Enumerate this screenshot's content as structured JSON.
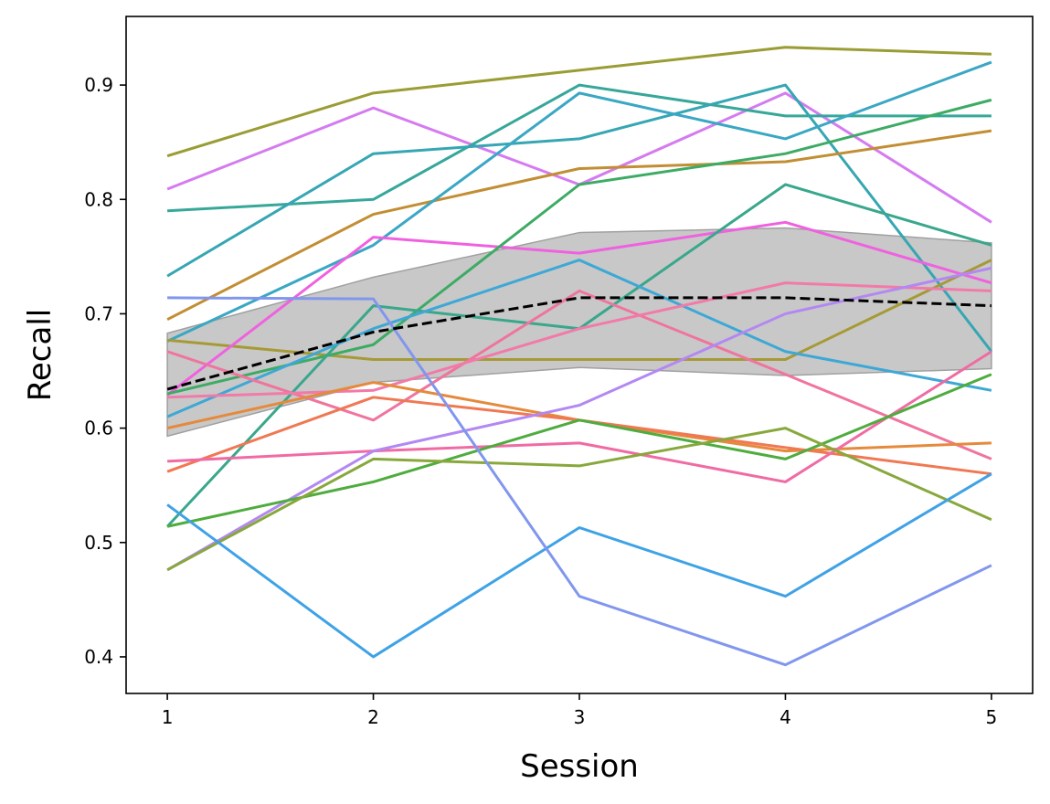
{
  "chart_data": {
    "type": "line",
    "title": "",
    "xlabel": "Session",
    "ylabel": "Recall",
    "x": [
      1,
      2,
      3,
      4,
      5
    ],
    "xlim": [
      0.8,
      5.2
    ],
    "ylim": [
      0.368,
      0.96
    ],
    "xticks": [
      "1",
      "2",
      "3",
      "4",
      "5"
    ],
    "yticks": [
      {
        "value": 0.4,
        "label": "0.4"
      },
      {
        "value": 0.5,
        "label": "0.5"
      },
      {
        "value": 0.6,
        "label": "0.6"
      },
      {
        "value": 0.7,
        "label": "0.7"
      },
      {
        "value": 0.8,
        "label": "0.8"
      },
      {
        "value": 0.9,
        "label": "0.9"
      }
    ],
    "grid": false,
    "series": [
      {
        "color": "#9a9c34",
        "values": [
          0.838,
          0.893,
          0.913,
          0.933,
          0.927
        ]
      },
      {
        "color": "#d57bf0",
        "values": [
          0.809,
          0.88,
          0.813,
          0.893,
          0.78
        ]
      },
      {
        "color": "#36a79a",
        "values": [
          0.79,
          0.8,
          0.9,
          0.873,
          0.873
        ]
      },
      {
        "color": "#36a6b3",
        "values": [
          0.733,
          0.84,
          0.853,
          0.9,
          0.667
        ]
      },
      {
        "color": "#c28e33",
        "values": [
          0.695,
          0.787,
          0.827,
          0.833,
          0.86
        ]
      },
      {
        "color": "#3aa7c4",
        "values": [
          0.676,
          0.76,
          0.893,
          0.853,
          0.92
        ]
      },
      {
        "color": "#a69a36",
        "values": [
          0.677,
          0.66,
          0.66,
          0.66,
          0.747
        ]
      },
      {
        "color": "#f061e0",
        "values": [
          0.629,
          0.767,
          0.753,
          0.78,
          0.727
        ]
      },
      {
        "color": "#3dab64",
        "values": [
          0.63,
          0.673,
          0.813,
          0.84,
          0.887
        ]
      },
      {
        "color": "#39a78b",
        "values": [
          0.514,
          0.707,
          0.687,
          0.813,
          0.76
        ]
      },
      {
        "color": "#3da8d6",
        "values": [
          0.61,
          0.687,
          0.747,
          0.667,
          0.633
        ]
      },
      {
        "color": "#f0749e",
        "values": [
          0.667,
          0.607,
          0.72,
          0.647,
          0.573
        ]
      },
      {
        "color": "#f27aa8",
        "values": [
          0.627,
          0.633,
          0.687,
          0.727,
          0.72
        ]
      },
      {
        "color": "#e58a3c",
        "values": [
          0.6,
          0.64,
          0.607,
          0.58,
          0.587
        ]
      },
      {
        "color": "#f07853",
        "values": [
          0.562,
          0.627,
          0.607,
          0.583,
          0.56
        ]
      },
      {
        "color": "#f06ba3",
        "values": [
          0.571,
          0.58,
          0.587,
          0.553,
          0.667
        ]
      },
      {
        "color": "#b388f2",
        "values": [
          0.476,
          0.58,
          0.62,
          0.7,
          0.74
        ]
      },
      {
        "color": "#4fac3e",
        "values": [
          0.514,
          0.553,
          0.607,
          0.573,
          0.647
        ]
      },
      {
        "color": "#88a83c",
        "values": [
          0.476,
          0.573,
          0.567,
          0.6,
          0.52
        ]
      },
      {
        "color": "#3fa2e6",
        "values": [
          0.533,
          0.4,
          0.513,
          0.453,
          0.56
        ]
      },
      {
        "color": "#8196ee",
        "values": [
          0.714,
          0.713,
          0.453,
          0.393,
          0.48
        ]
      }
    ],
    "mean": {
      "color": "#000000",
      "style": "dashed",
      "values": [
        0.634,
        0.684,
        0.714,
        0.714,
        0.707
      ]
    },
    "band": {
      "color": "#c8c8c8",
      "upper": [
        0.683,
        0.732,
        0.771,
        0.775,
        0.762
      ],
      "lower": [
        0.593,
        0.64,
        0.653,
        0.646,
        0.652
      ]
    }
  }
}
